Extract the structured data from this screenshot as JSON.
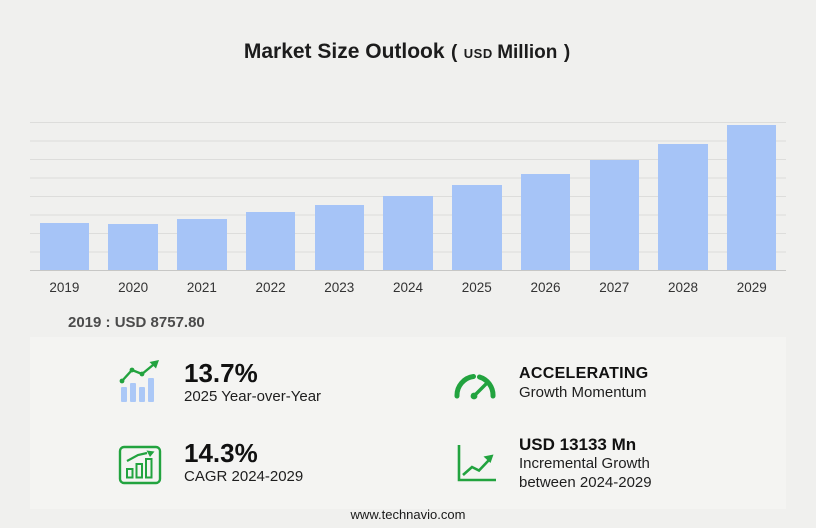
{
  "title": {
    "main": "Market Size Outlook",
    "paren_open": "(",
    "currency": "USD",
    "unit": "Million",
    "paren_close": ")"
  },
  "base_year_note": "2019 : USD 8757.80",
  "chart_data": {
    "type": "bar",
    "title": "Market Size Outlook (USD Million)",
    "categories": [
      "2019",
      "2020",
      "2021",
      "2022",
      "2023",
      "2024",
      "2025",
      "2026",
      "2027",
      "2028",
      "2029"
    ],
    "values": [
      8757.8,
      8600,
      9500,
      10700,
      12100,
      13811,
      15703,
      17900,
      20500,
      23400,
      26944
    ],
    "ylim": [
      0,
      27500
    ],
    "grid": "horizontal",
    "bar_color": "#a6c4f7",
    "xlabel": "",
    "ylabel": "",
    "legend": "none",
    "annotations": [
      "2019 : USD 8757.80"
    ]
  },
  "stats": [
    {
      "icon": "bar-chart-trend-icon",
      "value": "13.7%",
      "label": "2025 Year-over-Year"
    },
    {
      "icon": "speedometer-icon",
      "value": "ACCELERATING",
      "label": "Growth Momentum"
    },
    {
      "icon": "framed-bar-chart-icon",
      "value": "14.3%",
      "label": "CAGR 2024-2029"
    },
    {
      "icon": "line-growth-icon",
      "value": "USD 13133 Mn",
      "label": "Incremental Growth",
      "label2": "between 2024-2029"
    }
  ],
  "footer": {
    "url": "www.technavio.com"
  },
  "colors": {
    "bar": "#a6c4f7",
    "accent_green": "#22a33f",
    "background": "#f0f0ee",
    "panel": "#f4f4f2"
  }
}
